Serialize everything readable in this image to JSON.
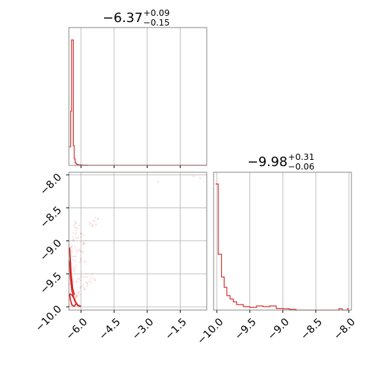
{
  "chart_data": [
    {
      "type": "histogram",
      "panel": "marginal-x",
      "title_main": "−6.37",
      "title_upper": "+0.09",
      "title_lower": "−0.15",
      "xlim": [
        -6.55,
        -0.3
      ],
      "color": "#d62728",
      "grid": true,
      "hist": {
        "edges": [
          -6.55,
          -6.47,
          -6.43,
          -6.39,
          -6.35,
          -6.31,
          -6.27,
          -6.23,
          -6.19,
          -6.15,
          -6.1,
          -6.0,
          -5.9,
          -5.8,
          -5.7,
          -0.3
        ],
        "counts": [
          0.148,
          0.432,
          1.0,
          1.0,
          0.158,
          0.052,
          0.022,
          0.012,
          0.008,
          0.005,
          0.004,
          0.003,
          0.002,
          0.002,
          0.001
        ]
      }
    },
    {
      "type": "scatter",
      "panel": "joint",
      "xlim": [
        -6.55,
        -0.3
      ],
      "ylim": [
        -10.05,
        -7.96
      ],
      "xticks": [
        "−6.0",
        "−4.5",
        "−3.0",
        "−1.5"
      ],
      "xtick_values": [
        -6.0,
        -4.5,
        -3.0,
        -1.5
      ],
      "yticks": [
        "−10.0",
        "−9.5",
        "−9.0",
        "−8.5",
        "−8.0"
      ],
      "ytick_values": [
        -10.0,
        -9.5,
        -9.0,
        -8.5,
        -8.0
      ],
      "color": "#d62728",
      "grid": true,
      "outlier_points": [
        [
          -2.5,
          -8.1
        ],
        [
          -0.9,
          -8.02
        ],
        [
          -0.6,
          -8.05
        ]
      ],
      "cloud_points": [
        [
          -6.45,
          -9.95
        ],
        [
          -6.3,
          -9.9
        ],
        [
          -6.2,
          -9.85
        ],
        [
          -6.1,
          -9.8
        ],
        [
          -5.9,
          -9.72
        ],
        [
          -5.7,
          -9.65
        ],
        [
          -5.5,
          -9.55
        ],
        [
          -6.4,
          -9.6
        ],
        [
          -6.35,
          -9.4
        ],
        [
          -6.3,
          -9.2
        ],
        [
          -6.25,
          -9.0
        ],
        [
          -6.2,
          -8.85
        ],
        [
          -6.15,
          -8.75
        ],
        [
          -6.0,
          -8.9
        ],
        [
          -5.9,
          -9.0
        ],
        [
          -5.6,
          -8.75
        ],
        [
          -5.3,
          -8.7
        ],
        [
          -6.4,
          -9.3
        ],
        [
          -6.4,
          -9.1
        ],
        [
          -6.45,
          -9.5
        ],
        [
          -6.1,
          -9.6
        ],
        [
          -5.85,
          -9.5
        ],
        [
          -5.95,
          -9.3
        ],
        [
          -6.05,
          -9.15
        ]
      ],
      "contours": [
        [
          [
            -6.52,
            -9.8
          ],
          [
            -6.48,
            -9.9
          ],
          [
            -6.4,
            -9.98
          ],
          [
            -6.3,
            -9.99
          ],
          [
            -6.22,
            -9.95
          ],
          [
            -6.3,
            -9.88
          ],
          [
            -6.42,
            -9.82
          ],
          [
            -6.52,
            -9.8
          ]
        ],
        [
          [
            -6.52,
            -9.3
          ],
          [
            -6.48,
            -9.55
          ],
          [
            -6.42,
            -9.75
          ],
          [
            -6.3,
            -9.9
          ],
          [
            -6.15,
            -9.98
          ],
          [
            -6.0,
            -9.99
          ]
        ],
        [
          [
            -6.52,
            -9.1
          ],
          [
            -6.45,
            -9.5
          ],
          [
            -6.38,
            -9.72
          ],
          [
            -6.3,
            -9.82
          ]
        ],
        [
          [
            -6.28,
            -9.92
          ],
          [
            -6.18,
            -9.96
          ],
          [
            -6.05,
            -10.0
          ]
        ]
      ]
    },
    {
      "type": "histogram",
      "panel": "marginal-y",
      "title_main": "−9.98",
      "title_upper": "+0.31",
      "title_lower": "−0.06",
      "xlim": [
        -10.05,
        -7.96
      ],
      "xticks": [
        "−10.0",
        "−9.5",
        "−9.0",
        "−8.5",
        "−8.0"
      ],
      "xtick_values": [
        -10.0,
        -9.5,
        -9.0,
        -8.5,
        -8.0
      ],
      "color": "#d62728",
      "grid": true,
      "hist": {
        "edges": [
          -10.02,
          -9.98,
          -9.93,
          -9.89,
          -9.85,
          -9.8,
          -9.75,
          -9.7,
          -9.6,
          -9.5,
          -9.4,
          -9.3,
          -9.2,
          -9.1,
          -9.0,
          -8.9,
          -8.8,
          -8.15,
          -8.1,
          -8.02,
          -8.0
        ],
        "counts": [
          0.915,
          0.405,
          0.24,
          0.165,
          0.105,
          0.08,
          0.06,
          0.04,
          0.025,
          0.02,
          0.03,
          0.025,
          0.03,
          0.012,
          0.01,
          0.005,
          0.0,
          0.01,
          0.0,
          0.01
        ]
      }
    }
  ]
}
